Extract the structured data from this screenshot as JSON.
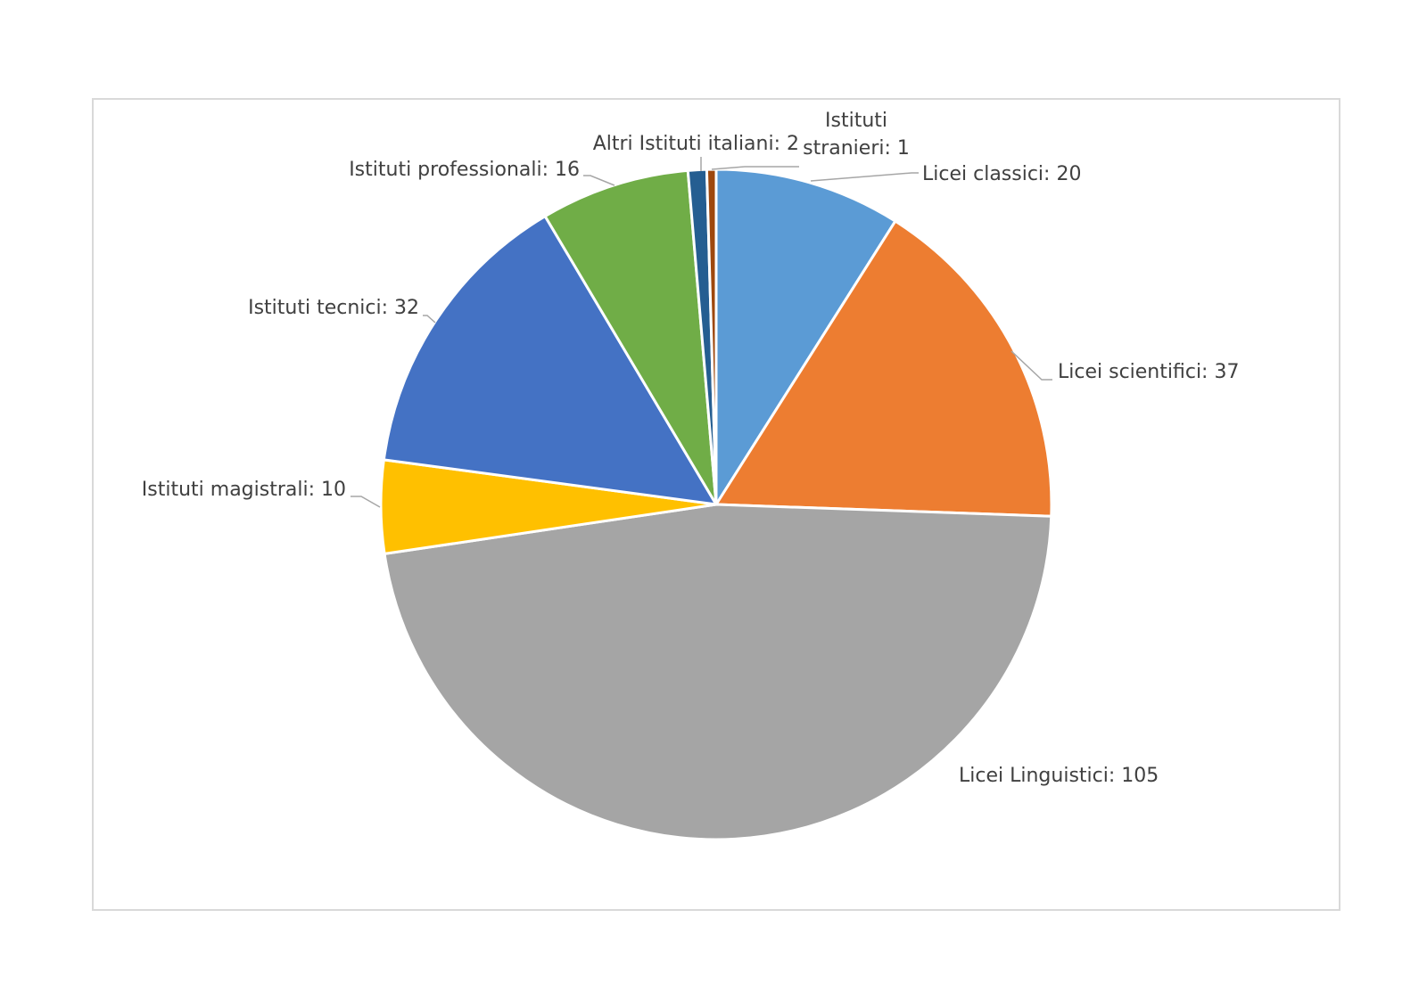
{
  "chart_data": {
    "type": "pie",
    "start_angle_deg": 0,
    "direction": "clockwise",
    "slices": [
      {
        "label": "Licei classici",
        "value": 20,
        "label_text": [
          "Licei classici: 20"
        ],
        "color": "#5b9bd5"
      },
      {
        "label": "Licei scientifici",
        "value": 37,
        "label_text": [
          "Licei scientifici: 37"
        ],
        "color": "#ed7d31"
      },
      {
        "label": "Licei Linguistici",
        "value": 105,
        "label_text": [
          "Licei Linguistici: 105"
        ],
        "color": "#a5a5a5"
      },
      {
        "label": "Istituti magistrali",
        "value": 10,
        "label_text": [
          "Istituti magistrali: 10"
        ],
        "color": "#ffc000"
      },
      {
        "label": "Istituti tecnici",
        "value": 32,
        "label_text": [
          "Istituti tecnici: 32"
        ],
        "color": "#4472c4"
      },
      {
        "label": "Istituti professionali",
        "value": 16,
        "label_text": [
          "Istituti professionali: 16"
        ],
        "color": "#70ad47"
      },
      {
        "label": "Altri Istituti italiani",
        "value": 2,
        "label_text": [
          "Altri Istituti italiani: 2"
        ],
        "color": "#255e91"
      },
      {
        "label": "Istituti stranieri",
        "value": 1,
        "label_text": [
          "Istituti",
          "stranieri: 1"
        ],
        "color": "#9e480e"
      }
    ]
  }
}
